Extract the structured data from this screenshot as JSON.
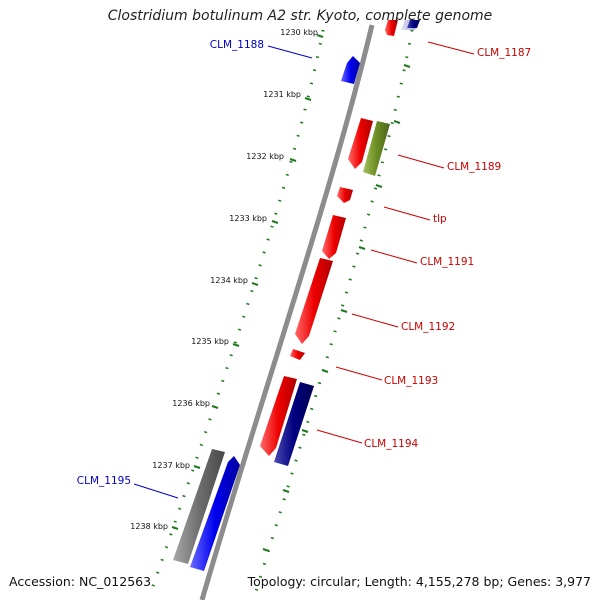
{
  "title": "Clostridium botulinum A2 str. Kyoto, complete genome",
  "footer": {
    "accession": "Accession: NC_012563",
    "topology": "Topology: circular; Length: 4,155,278 bp; Genes: 3,977"
  },
  "colors": {
    "backbone": "#8c8c8c",
    "tick": "#1e7a1e",
    "forward_gene": "#0000ee",
    "reverse_gene": "#ee0000",
    "navy_gene": "#000080",
    "olive_gene": "#6b8e23",
    "grey_gene": "#6e6e6e",
    "label_blue": "#0000cc",
    "label_red": "#cc0000"
  },
  "ticks": [
    {
      "label": "1230 kbp"
    },
    {
      "label": "1231 kbp"
    },
    {
      "label": "1232 kbp"
    },
    {
      "label": "1233 kbp"
    },
    {
      "label": "1234 kbp"
    },
    {
      "label": "1235 kbp"
    },
    {
      "label": "1236 kbp"
    },
    {
      "label": "1237 kbp"
    },
    {
      "label": "1238 kbp"
    }
  ],
  "gene_labels": [
    {
      "text": "CLM_1187",
      "strand": "reverse"
    },
    {
      "text": "CLM_1188",
      "strand": "forward"
    },
    {
      "text": "CLM_1189",
      "strand": "reverse"
    },
    {
      "text": "tlp",
      "strand": "reverse"
    },
    {
      "text": "CLM_1191",
      "strand": "reverse"
    },
    {
      "text": "CLM_1192",
      "strand": "reverse"
    },
    {
      "text": "CLM_1193",
      "strand": "reverse"
    },
    {
      "text": "CLM_1194",
      "strand": "reverse"
    },
    {
      "text": "CLM_1195",
      "strand": "forward"
    }
  ]
}
